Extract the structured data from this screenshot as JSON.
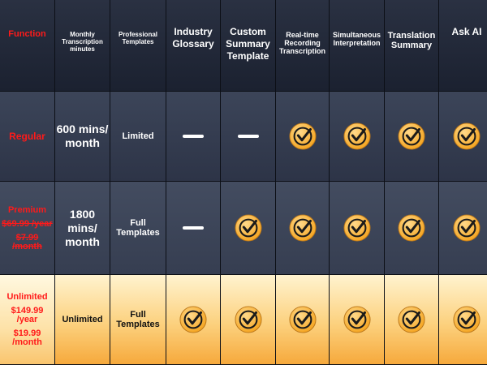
{
  "header": {
    "function": "Function",
    "monthly_minutes": "Monthly Transcription minutes",
    "professional_templates": "Professional Templates",
    "industry_glossary": "Industry Glossary",
    "custom_summary_template": "Custom Summary Template",
    "realtime_recording": "Real-time Recording Transcription",
    "simultaneous_interpretation": "Simultaneous Interpretation",
    "translation_summary": "Translation Summary",
    "ask_ai": "Ask AI"
  },
  "plans": {
    "regular": {
      "name": "Regular",
      "minutes": "600 mins/ month",
      "templates": "Limited",
      "features": [
        "dash",
        "dash",
        "check",
        "check",
        "check",
        "check"
      ]
    },
    "premium": {
      "name": "Premium",
      "price_year": "$69.99 /year",
      "price_month": "$7.99 /month",
      "minutes": "1800 mins/ month",
      "templates": "Full Templates",
      "features": [
        "dash",
        "check",
        "check",
        "check",
        "check",
        "check"
      ]
    },
    "unlimited": {
      "name": "Unlimited",
      "price_year": "$149.99 /year",
      "price_month": "$19.99 /month",
      "minutes": "Unlimited",
      "templates": "Full Templates",
      "features": [
        "check",
        "check",
        "check",
        "check",
        "check",
        "check"
      ]
    }
  },
  "colors": {
    "accent_red": "#ff1a1a",
    "check_fill": "#f5a623",
    "unlimited_gradient_top": "#fff3cf",
    "unlimited_gradient_bottom": "#f6a93c"
  },
  "icons": {
    "included": "checkmark-circle-icon",
    "not_included": "dash-icon"
  }
}
